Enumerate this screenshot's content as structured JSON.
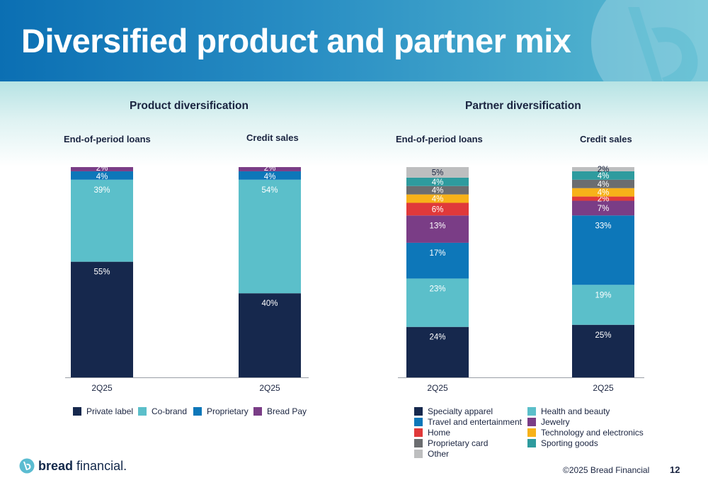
{
  "header": {
    "title": "Diversified product and partner mix"
  },
  "colors": {
    "private_label": "#16284d",
    "co_brand": "#5bbfca",
    "proprietary": "#0d77b9",
    "bread_pay": "#7a3d86",
    "specialty_apparel": "#16284d",
    "health_beauty": "#5bbfca",
    "travel": "#0d77b9",
    "jewelry": "#7a3d86",
    "home": "#e0393a",
    "tech": "#f7b219",
    "proprietary_card": "#6b6d70",
    "sporting": "#2e9b9e",
    "other": "#bdbebf"
  },
  "product": {
    "title": "Product diversification",
    "legend": [
      "Private label",
      "Co-brand",
      "Proprietary",
      "Bread Pay"
    ]
  },
  "partner": {
    "title": "Partner diversification",
    "legend": [
      "Specialty apparel",
      "Health and beauty",
      "Travel and entertainment",
      "Jewelry",
      "Home",
      "Technology and electronics",
      "Proprietary card",
      "Sporting goods",
      "Other"
    ]
  },
  "chart_data": [
    {
      "type": "bar",
      "stacked": true,
      "title": "Product diversification",
      "categories": [
        "End-of-period loans",
        "Credit sales"
      ],
      "x_tick_labels": [
        "2Q25",
        "2Q25"
      ],
      "unit": "%",
      "ylim": [
        0,
        100
      ],
      "series": [
        {
          "name": "Private label",
          "values": [
            55,
            40
          ],
          "labels": [
            "55%",
            "40%"
          ]
        },
        {
          "name": "Co-brand",
          "values": [
            39,
            54
          ],
          "labels": [
            "39%",
            "54%"
          ]
        },
        {
          "name": "Proprietary",
          "values": [
            4,
            4
          ],
          "labels": [
            "4%",
            "4%"
          ]
        },
        {
          "name": "Bread Pay",
          "values": [
            2,
            2
          ],
          "labels": [
            "2%",
            "2%"
          ]
        }
      ]
    },
    {
      "type": "bar",
      "stacked": true,
      "title": "Partner diversification",
      "categories": [
        "End-of-period loans",
        "Credit sales"
      ],
      "x_tick_labels": [
        "2Q25",
        "2Q25"
      ],
      "unit": "%",
      "ylim": [
        0,
        100
      ],
      "series": [
        {
          "name": "Specialty apparel",
          "values": [
            24,
            25
          ],
          "labels": [
            "24%",
            "25%"
          ]
        },
        {
          "name": "Health and beauty",
          "values": [
            23,
            19
          ],
          "labels": [
            "23%",
            "19%"
          ]
        },
        {
          "name": "Travel and entertainment",
          "values": [
            17,
            33
          ],
          "labels": [
            "17%",
            "33%"
          ]
        },
        {
          "name": "Jewelry",
          "values": [
            13,
            7
          ],
          "labels": [
            "13%",
            "7%"
          ]
        },
        {
          "name": "Home",
          "values": [
            6,
            2
          ],
          "labels": [
            "6%",
            "2%"
          ]
        },
        {
          "name": "Technology and electronics",
          "values": [
            4,
            4
          ],
          "labels": [
            "4%",
            "4%"
          ]
        },
        {
          "name": "Proprietary card",
          "values": [
            4,
            4
          ],
          "labels": [
            "4%",
            "4%"
          ]
        },
        {
          "name": "Sporting goods",
          "values": [
            4,
            4
          ],
          "labels": [
            "4%",
            "4%"
          ]
        },
        {
          "name": "Other",
          "values": [
            5,
            2
          ],
          "labels": [
            "5%",
            "2%"
          ]
        }
      ]
    }
  ],
  "footer": {
    "copyright": "©2025 Bread Financial",
    "page_number": "12",
    "brand_bold": "bread",
    "brand_light": " financial."
  }
}
